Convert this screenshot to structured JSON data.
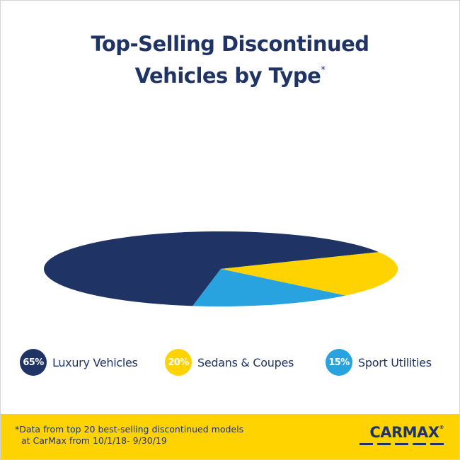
{
  "title": {
    "line1": "Top-Selling Discontinued",
    "line2": "Vehicles by Type",
    "marker": "*"
  },
  "colors": {
    "navy": "#1f3464",
    "yellow": "#ffd300",
    "blue": "#29a3e0"
  },
  "chart_data": {
    "type": "pie",
    "title": "Top-Selling Discontinued Vehicles by Type*",
    "categories": [
      "Luxury Vehicles",
      "Sedans & Coupes",
      "Sport Utilities"
    ],
    "values": [
      65,
      20,
      15
    ],
    "value_labels": [
      "65%",
      "20%",
      "15%"
    ],
    "colors": [
      "#1f3464",
      "#ffd300",
      "#29a3e0"
    ],
    "legend": "bottom"
  },
  "footer": {
    "note_line1": "*Data from top 20 best-selling discontinued models",
    "note_line2": "at CarMax from 10/1/18- 9/30/19",
    "logo_text": "CARMAX",
    "logo_mark": "®"
  }
}
